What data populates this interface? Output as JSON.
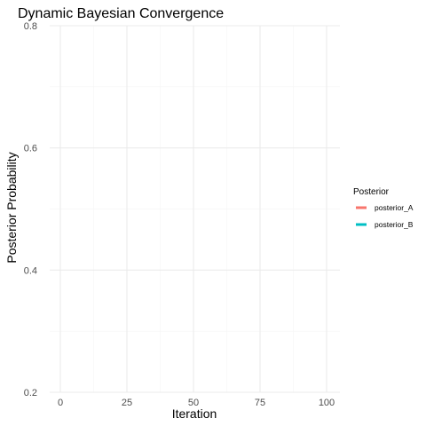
{
  "chart_data": {
    "type": "line",
    "title": "Dynamic Bayesian Convergence",
    "xlabel": "Iteration",
    "ylabel": "Posterior Probability",
    "x_ticks": [
      0,
      25,
      50,
      75,
      100
    ],
    "y_ticks": [
      0.2,
      0.4,
      0.6,
      0.8
    ],
    "xlim": [
      -4,
      105
    ],
    "ylim": [
      0.2,
      0.8
    ],
    "grid": true,
    "legend": {
      "title": "Posterior",
      "position": "right"
    },
    "series": [
      {
        "name": "posterior_A",
        "color": "#F8766D",
        "x": [],
        "y": []
      },
      {
        "name": "posterior_B",
        "color": "#00BFC4",
        "x": [],
        "y": []
      }
    ]
  }
}
